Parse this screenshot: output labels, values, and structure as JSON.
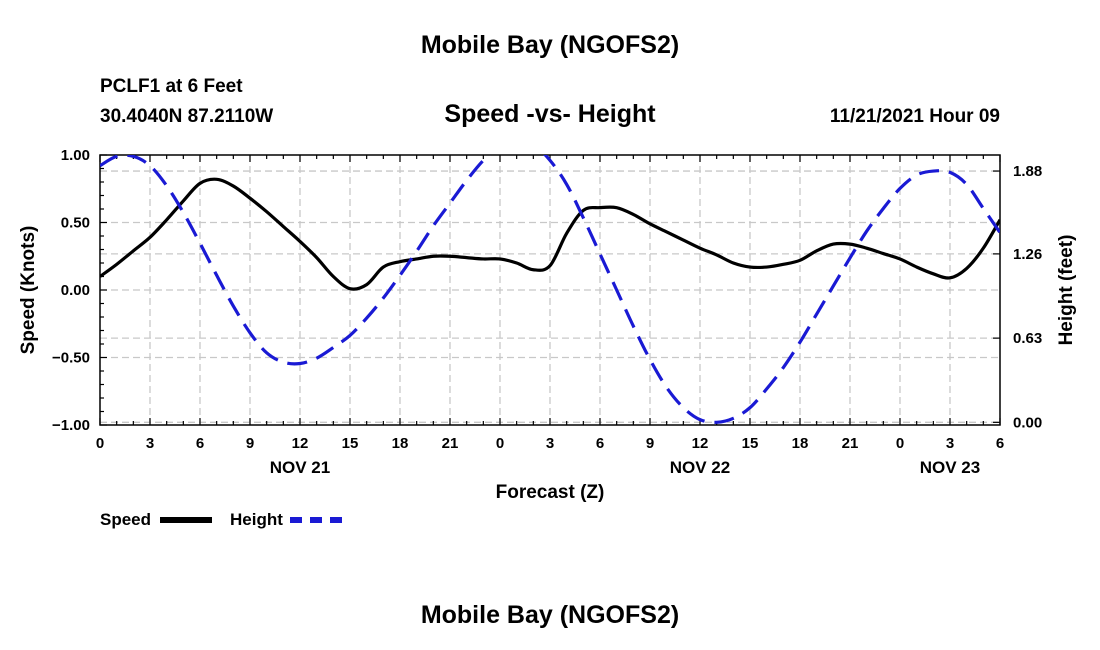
{
  "page_title": "Mobile Bay (NGOFS2)",
  "footer_title": "Mobile Bay (NGOFS2)",
  "station": {
    "name_line": "PCLF1 at 6 Feet",
    "coords_line": "30.4040N  87.2110W"
  },
  "timestamp": "11/21/2021 Hour 09",
  "chart_data": {
    "type": "line",
    "title": "Speed -vs- Height",
    "xlabel": "Forecast (Z)",
    "ylabel_left": "Speed (Knots)",
    "ylabel_right": "Height (feet)",
    "x_unit": "forecast hours since 00Z Nov 21",
    "xlim": [
      0,
      54
    ],
    "ylim_left": [
      -1.0,
      1.0
    ],
    "ylim_right": [
      -0.02,
      2.0
    ],
    "grid": true,
    "x_ticks": [
      0,
      3,
      6,
      9,
      12,
      15,
      18,
      21,
      24,
      27,
      30,
      33,
      36,
      39,
      42,
      45,
      48,
      51,
      54
    ],
    "x_tick_labels": [
      "0",
      "3",
      "6",
      "9",
      "12",
      "15",
      "18",
      "21",
      "0",
      "3",
      "6",
      "9",
      "12",
      "15",
      "18",
      "21",
      "0",
      "3",
      "6"
    ],
    "date_ticks": [
      {
        "x": 12,
        "label": "NOV 21"
      },
      {
        "x": 36,
        "label": "NOV 22"
      },
      {
        "x": 51,
        "label": "NOV 23"
      }
    ],
    "y_left_ticks": [
      -1.0,
      -0.5,
      0.0,
      0.5,
      1.0
    ],
    "y_left_tick_labels": [
      "−1.00",
      "−0.50",
      "0.00",
      "0.50",
      "1.00"
    ],
    "y_right_ticks": [
      0.0,
      0.63,
      1.26,
      1.88
    ],
    "y_right_tick_labels": [
      "0.00",
      "0.63",
      "1.26",
      "1.88"
    ],
    "series": [
      {
        "name": "Speed",
        "axis": "left",
        "color": "#000000",
        "style": "solid",
        "x": [
          0,
          1,
          2,
          3,
          4,
          5,
          6,
          7,
          8,
          9,
          10,
          11,
          12,
          13,
          14,
          15,
          16,
          17,
          18,
          19,
          20,
          21,
          22,
          23,
          24,
          25,
          26,
          27,
          28,
          29,
          30,
          31,
          32,
          33,
          34,
          35,
          36,
          37,
          38,
          39,
          40,
          41,
          42,
          43,
          44,
          45,
          46,
          47,
          48,
          49,
          50,
          51,
          52,
          53,
          54
        ],
        "values": [
          0.1,
          0.19,
          0.29,
          0.39,
          0.52,
          0.66,
          0.79,
          0.82,
          0.77,
          0.68,
          0.58,
          0.47,
          0.36,
          0.24,
          0.1,
          0.01,
          0.04,
          0.17,
          0.21,
          0.23,
          0.25,
          0.25,
          0.24,
          0.23,
          0.23,
          0.2,
          0.15,
          0.18,
          0.42,
          0.59,
          0.61,
          0.61,
          0.56,
          0.49,
          0.43,
          0.37,
          0.31,
          0.26,
          0.2,
          0.17,
          0.17,
          0.19,
          0.22,
          0.29,
          0.34,
          0.34,
          0.31,
          0.27,
          0.23,
          0.17,
          0.12,
          0.09,
          0.16,
          0.31,
          0.52
        ]
      },
      {
        "name": "Height",
        "axis": "right",
        "color": "#1a1ad4",
        "style": "dashed",
        "x": [
          0,
          1,
          2,
          3,
          4,
          5,
          6,
          7,
          8,
          9,
          10,
          11,
          12,
          13,
          14,
          15,
          16,
          17,
          18,
          19,
          20,
          21,
          22,
          23,
          24,
          25,
          26,
          27,
          28,
          29,
          30,
          31,
          32,
          33,
          34,
          35,
          36,
          37,
          38,
          39,
          40,
          41,
          42,
          43,
          44,
          45,
          46,
          47,
          48,
          49,
          50,
          51,
          52,
          53,
          54
        ],
        "values": [
          1.92,
          1.99,
          1.99,
          1.92,
          1.77,
          1.57,
          1.34,
          1.1,
          0.87,
          0.67,
          0.52,
          0.45,
          0.44,
          0.48,
          0.56,
          0.65,
          0.78,
          0.93,
          1.1,
          1.28,
          1.47,
          1.64,
          1.81,
          1.96,
          2.07,
          2.12,
          2.08,
          1.96,
          1.78,
          1.53,
          1.26,
          0.99,
          0.72,
          0.47,
          0.26,
          0.11,
          0.02,
          0.0,
          0.03,
          0.11,
          0.25,
          0.41,
          0.6,
          0.81,
          1.02,
          1.23,
          1.43,
          1.6,
          1.75,
          1.85,
          1.88,
          1.87,
          1.78,
          1.6,
          1.42
        ]
      }
    ]
  },
  "legend": [
    {
      "label": "Speed",
      "color": "#000000",
      "style": "solid"
    },
    {
      "label": "Height",
      "color": "#1a1ad4",
      "style": "dashed"
    }
  ]
}
